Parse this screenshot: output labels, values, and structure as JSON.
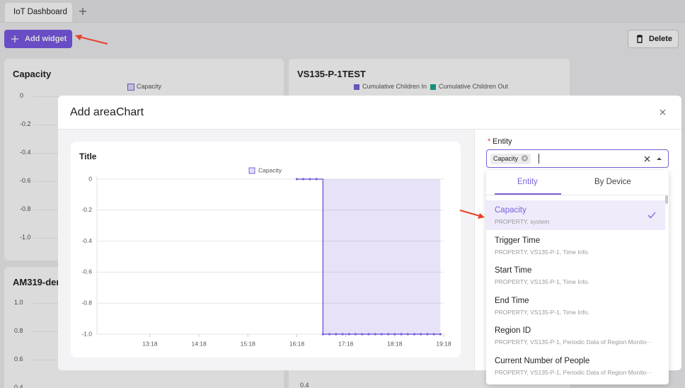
{
  "tabs": {
    "active": "IoT Dashboard"
  },
  "toolbar": {
    "add_widget": "Add widget",
    "delete": "Delete"
  },
  "cards": [
    {
      "title": "Capacity",
      "legend": [
        "Capacity"
      ],
      "yticks": [
        "0",
        "-0.2",
        "-0.4",
        "-0.6",
        "-0.8",
        "-1.0"
      ]
    },
    {
      "title": "VS135-P-1TEST",
      "legend": [
        "Cumulative Children In",
        "Cumulative Children Out"
      ],
      "yticks": [
        "0.4"
      ]
    },
    {
      "title": "AM319-dem",
      "yticks": [
        "1.0",
        "0.8",
        "0.6",
        "0.4"
      ]
    }
  ],
  "modal": {
    "title": "Add areaChart",
    "chart": {
      "type": "area",
      "title": "Title",
      "step": true,
      "x": [
        "16:18",
        "16:26",
        "16:34",
        "16:42",
        "16:50",
        "16:58",
        "17:06",
        "17:14",
        "17:22",
        "17:30",
        "17:38",
        "17:46",
        "17:54",
        "18:02",
        "18:10",
        "18:18",
        "18:26",
        "18:34",
        "18:42",
        "18:50",
        "18:58",
        "19:06",
        "19:14"
      ],
      "series": [
        {
          "name": "Capacity",
          "color": "#7b61d9",
          "values": [
            0,
            0,
            0,
            0,
            -1,
            -1,
            -1,
            -1,
            -1,
            -1,
            -1,
            -1,
            -1,
            -1,
            -1,
            -1,
            -1,
            -1,
            -1,
            -1,
            -1,
            -1,
            -1
          ]
        }
      ],
      "xlim": [
        "12:13",
        "19:18"
      ],
      "xticks": [
        "13:18",
        "14:18",
        "15:18",
        "16:18",
        "17:18",
        "18:18",
        "19:18"
      ],
      "ylim": [
        -1,
        0
      ],
      "yticks": [
        0,
        -0.2,
        -0.4,
        -0.6,
        -0.8,
        {
          "value": -1,
          "label": "-1.0"
        }
      ],
      "grid": true
    },
    "entity": {
      "required": "*",
      "label": "Entity",
      "selected_tag": "Capacity",
      "tabs": [
        "Entity",
        "By Device"
      ],
      "options": [
        {
          "name": "Capacity",
          "meta": "PROPERTY, system"
        },
        {
          "name": "Trigger Time",
          "meta": "PROPERTY, VS135-P-1, Time Info."
        },
        {
          "name": "Start Time",
          "meta": "PROPERTY, VS135-P-1, Time Info."
        },
        {
          "name": "End Time",
          "meta": "PROPERTY, VS135-P-1, Time Info."
        },
        {
          "name": "Region ID",
          "meta": "PROPERTY, VS135-P-1, Periodic Data of Region Monito···"
        },
        {
          "name": "Current Number of People",
          "meta": "PROPERTY, VS135-P-1, Periodic Data of Region Monito···"
        }
      ]
    }
  }
}
